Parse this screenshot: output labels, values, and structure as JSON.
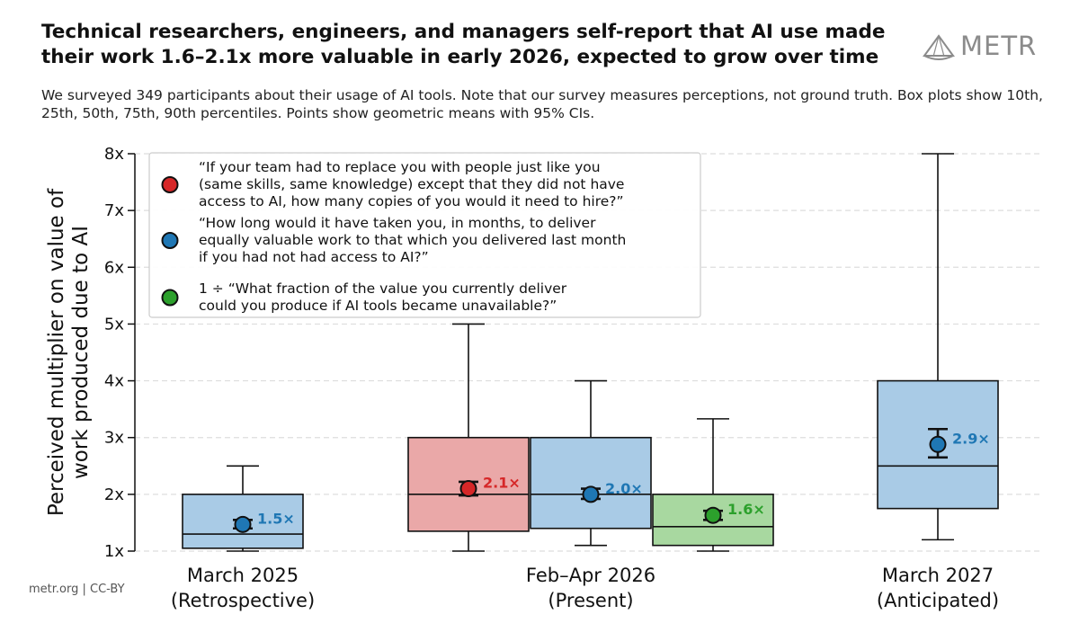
{
  "header": {
    "title": "Technical researchers, engineers, and managers self-report that AI use made their work 1.6–2.1x more valuable in early 2026, expected to grow over time",
    "subtitle": "We surveyed 349 participants about their usage of AI tools. Note that our survey measures perceptions, not ground truth. Box plots show 10th, 25th, 50th, 75th, 90th percentiles. Points show geometric means with 95% CIs.",
    "logo_text": "METR",
    "logo_icon": "metr-logo-icon"
  },
  "footer": {
    "text": "metr.org  |  CC-BY"
  },
  "chart_data": {
    "type": "box",
    "ylabel_lines": [
      "Perceived multiplier on value of",
      "work produced due to AI"
    ],
    "ylim": [
      1,
      8
    ],
    "yticks": [
      {
        "value": 1,
        "label": "1x"
      },
      {
        "value": 2,
        "label": "2x"
      },
      {
        "value": 3,
        "label": "3x"
      },
      {
        "value": 4,
        "label": "4x"
      },
      {
        "value": 5,
        "label": "5x"
      },
      {
        "value": 6,
        "label": "6x"
      },
      {
        "value": 7,
        "label": "7x"
      },
      {
        "value": 8,
        "label": "8x"
      }
    ],
    "grid": "horizontal-dashed",
    "legend_position": "top-left",
    "legend": [
      {
        "series": "red",
        "color": "#d62728",
        "lines": [
          "“If your team had to replace you with people just like you",
          "(same skills, same knowledge) except that they did not have",
          "access to AI, how many copies of you would it need to hire?”"
        ]
      },
      {
        "series": "blue",
        "color": "#1f77b4",
        "lines": [
          "“How long would it have taken you, in months, to deliver",
          "equally valuable work to that which you delivered last month",
          "if you had not had access to AI?”"
        ]
      },
      {
        "series": "green",
        "color": "#2ca02c",
        "lines": [
          "1 ÷ “What fraction of the value you currently deliver",
          "could you produce if AI tools became unavailable?”"
        ]
      }
    ],
    "groups": [
      {
        "label_lines": [
          "March 2025",
          "(Retrospective)"
        ]
      },
      {
        "label_lines": [
          "Feb–Apr 2026",
          "(Present)"
        ]
      },
      {
        "label_lines": [
          "March 2027",
          "(Anticipated)"
        ]
      }
    ],
    "boxes": [
      {
        "group": 0,
        "series": "blue",
        "color": "#1f77b4",
        "fill": "#a9cbe6",
        "p10": 1.0,
        "p25": 1.05,
        "p50": 1.3,
        "p75": 2.0,
        "p90": 2.5,
        "mean": 1.47,
        "ci": [
          1.4,
          1.55
        ],
        "label": "1.5×"
      },
      {
        "group": 1,
        "series": "red",
        "color": "#d62728",
        "fill": "#eaa8a8",
        "p10": 1.0,
        "p25": 1.35,
        "p50": 2.0,
        "p75": 3.0,
        "p90": 5.0,
        "mean": 2.1,
        "ci": [
          1.98,
          2.22
        ],
        "label": "2.1×"
      },
      {
        "group": 1,
        "series": "blue",
        "color": "#1f77b4",
        "fill": "#a9cbe6",
        "p10": 1.1,
        "p25": 1.4,
        "p50": 2.0,
        "p75": 3.0,
        "p90": 4.0,
        "mean": 2.0,
        "ci": [
          1.92,
          2.1
        ],
        "label": "2.0×"
      },
      {
        "group": 1,
        "series": "green",
        "color": "#2ca02c",
        "fill": "#a8d8a0",
        "p10": 1.0,
        "p25": 1.1,
        "p50": 1.43,
        "p75": 2.0,
        "p90": 3.33,
        "mean": 1.63,
        "ci": [
          1.55,
          1.71
        ],
        "label": "1.6×"
      },
      {
        "group": 2,
        "series": "blue",
        "color": "#1f77b4",
        "fill": "#a9cbe6",
        "p10": 1.2,
        "p25": 1.75,
        "p50": 2.5,
        "p75": 4.0,
        "p90": 8.0,
        "mean": 2.88,
        "ci": [
          2.65,
          3.15
        ],
        "label": "2.9×"
      }
    ]
  }
}
